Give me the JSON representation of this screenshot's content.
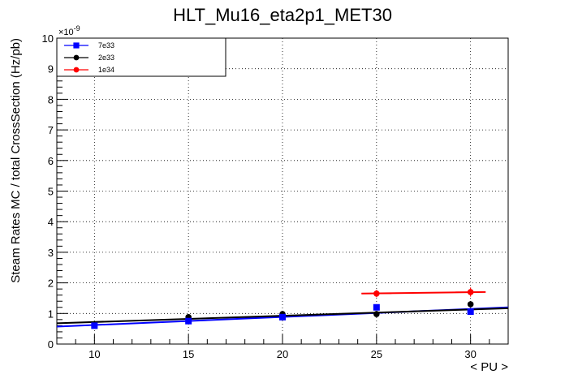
{
  "chart_data": {
    "type": "scatter",
    "title": "HLT_Mu16_eta2p1_MET30",
    "xlabel": "< PU >",
    "ylabel": "Steam Rates MC / total CrossSection (Hz/pb)",
    "y_multiplier": "×10",
    "y_exponent": "-9",
    "xlim": [
      8,
      32
    ],
    "ylim": [
      0,
      10
    ],
    "x_ticks": [
      10,
      15,
      20,
      25,
      30
    ],
    "y_ticks": [
      0,
      1,
      2,
      3,
      4,
      5,
      6,
      7,
      8,
      9,
      10
    ],
    "grid": true,
    "legend_position": "top-left",
    "series": [
      {
        "name": "7e33",
        "color": "#0000ff",
        "marker": "square",
        "x": [
          10,
          15,
          20,
          25,
          30
        ],
        "y": [
          0.6,
          0.75,
          0.88,
          1.2,
          1.06
        ],
        "yerr": [
          0.06,
          0.06,
          0.06,
          0.08,
          0.08
        ],
        "fit": {
          "x": [
            8,
            32
          ],
          "y": [
            0.57,
            1.2
          ]
        }
      },
      {
        "name": "2e33",
        "color": "#000000",
        "marker": "circle",
        "x": [
          10,
          15,
          20,
          25,
          30
        ],
        "y": [
          0.65,
          0.88,
          0.98,
          0.98,
          1.3
        ],
        "yerr": [
          0.07,
          0.07,
          0.07,
          0.08,
          0.1
        ],
        "fit": {
          "x": [
            8,
            32
          ],
          "y": [
            0.68,
            1.17
          ]
        }
      },
      {
        "name": "1e34",
        "color": "#ff0000",
        "marker": "circle",
        "x": [
          25,
          30
        ],
        "y": [
          1.65,
          1.7
        ],
        "yerr": [
          0.12,
          0.15
        ],
        "xerr": [
          0.8,
          0.8
        ],
        "fit": {
          "x": [
            24.2,
            30.8
          ],
          "y": [
            1.65,
            1.7
          ]
        }
      }
    ]
  }
}
